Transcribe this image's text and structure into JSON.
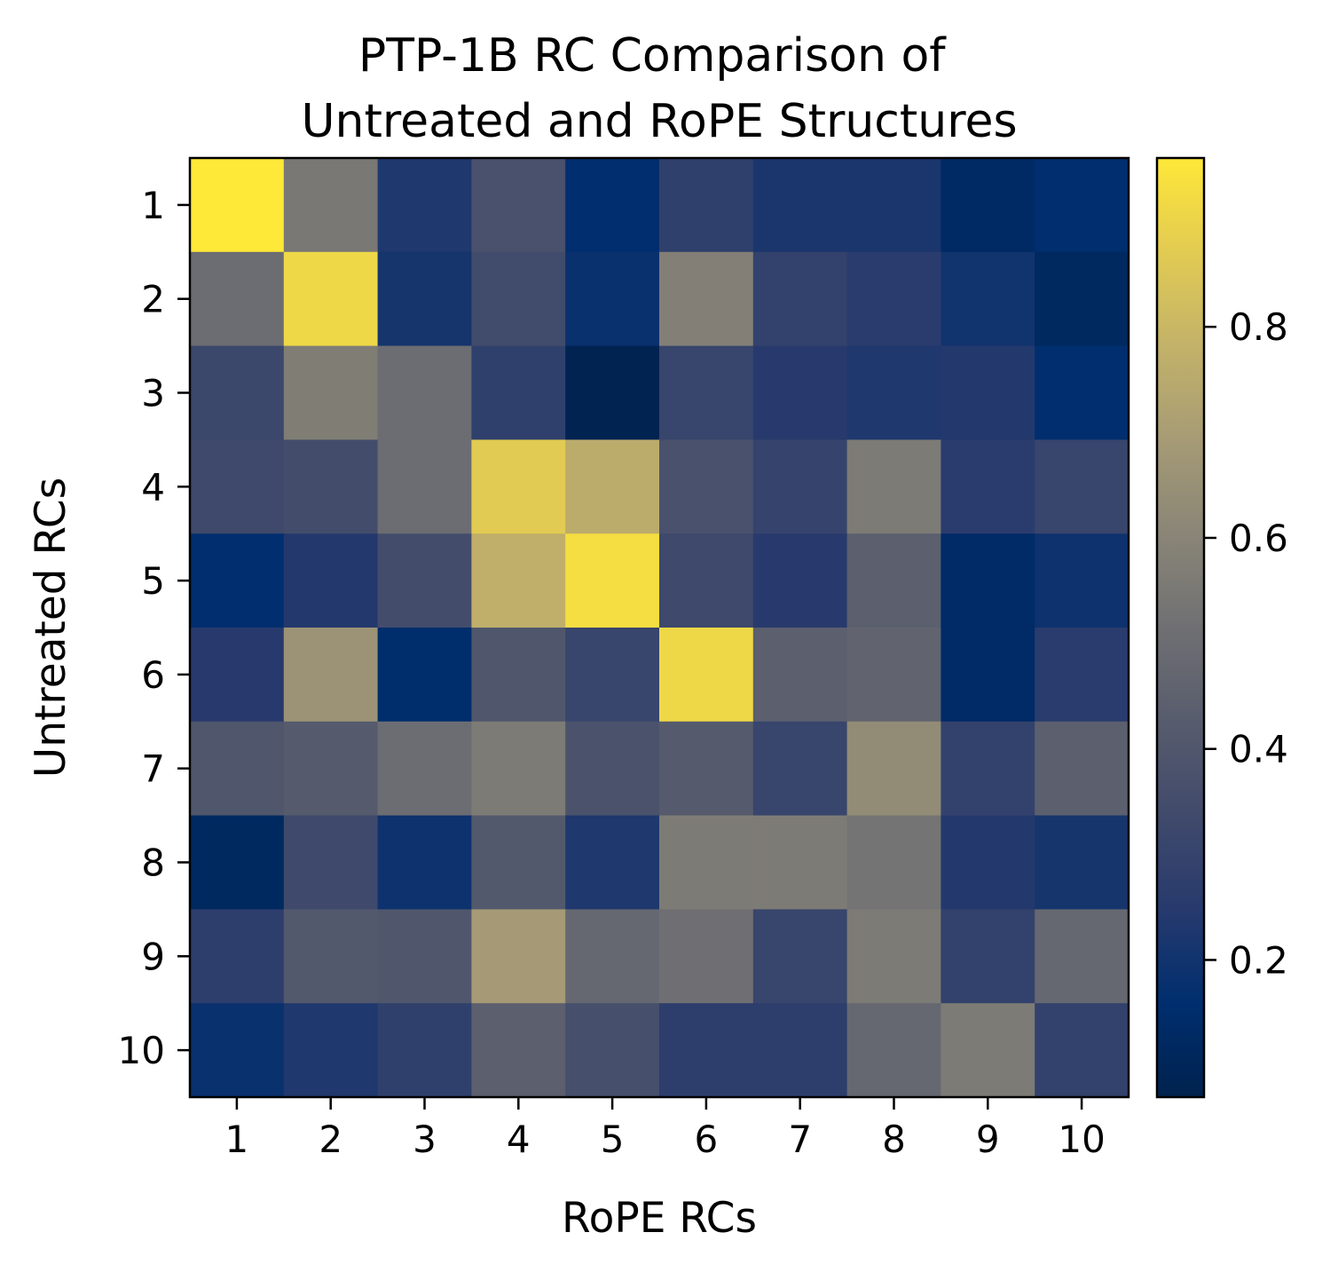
{
  "chart_data": {
    "type": "heatmap",
    "title": [
      "PTP-1B RC Comparison of",
      "Untreated and RoPE Structures"
    ],
    "xlabel": "RoPE RCs",
    "ylabel": "Untreated RCs",
    "x_categories": [
      "1",
      "2",
      "3",
      "4",
      "5",
      "6",
      "7",
      "8",
      "9",
      "10"
    ],
    "y_categories": [
      "1",
      "2",
      "3",
      "4",
      "5",
      "6",
      "7",
      "8",
      "9",
      "10"
    ],
    "colormap": "cividis",
    "vmin": 0.07,
    "vmax": 0.96,
    "colorbar": {
      "ticks": [
        0.2,
        0.4,
        0.6,
        0.8
      ],
      "tick_labels": [
        "0.2",
        "0.4",
        "0.6",
        "0.8"
      ]
    },
    "values": [
      [
        0.96,
        0.55,
        0.23,
        0.37,
        0.16,
        0.28,
        0.22,
        0.22,
        0.13,
        0.16
      ],
      [
        0.5,
        0.91,
        0.21,
        0.34,
        0.18,
        0.58,
        0.29,
        0.26,
        0.2,
        0.12
      ],
      [
        0.32,
        0.57,
        0.5,
        0.28,
        0.08,
        0.31,
        0.25,
        0.23,
        0.24,
        0.16
      ],
      [
        0.33,
        0.35,
        0.5,
        0.87,
        0.76,
        0.37,
        0.3,
        0.56,
        0.26,
        0.31
      ],
      [
        0.16,
        0.24,
        0.35,
        0.77,
        0.93,
        0.33,
        0.25,
        0.44,
        0.14,
        0.19
      ],
      [
        0.25,
        0.66,
        0.15,
        0.4,
        0.31,
        0.91,
        0.44,
        0.46,
        0.14,
        0.26
      ],
      [
        0.4,
        0.42,
        0.5,
        0.56,
        0.38,
        0.42,
        0.31,
        0.63,
        0.29,
        0.44
      ],
      [
        0.12,
        0.33,
        0.19,
        0.41,
        0.23,
        0.56,
        0.56,
        0.53,
        0.24,
        0.21
      ],
      [
        0.27,
        0.41,
        0.4,
        0.69,
        0.48,
        0.51,
        0.31,
        0.56,
        0.29,
        0.48
      ],
      [
        0.18,
        0.23,
        0.28,
        0.44,
        0.36,
        0.27,
        0.27,
        0.48,
        0.56,
        0.29
      ]
    ]
  }
}
